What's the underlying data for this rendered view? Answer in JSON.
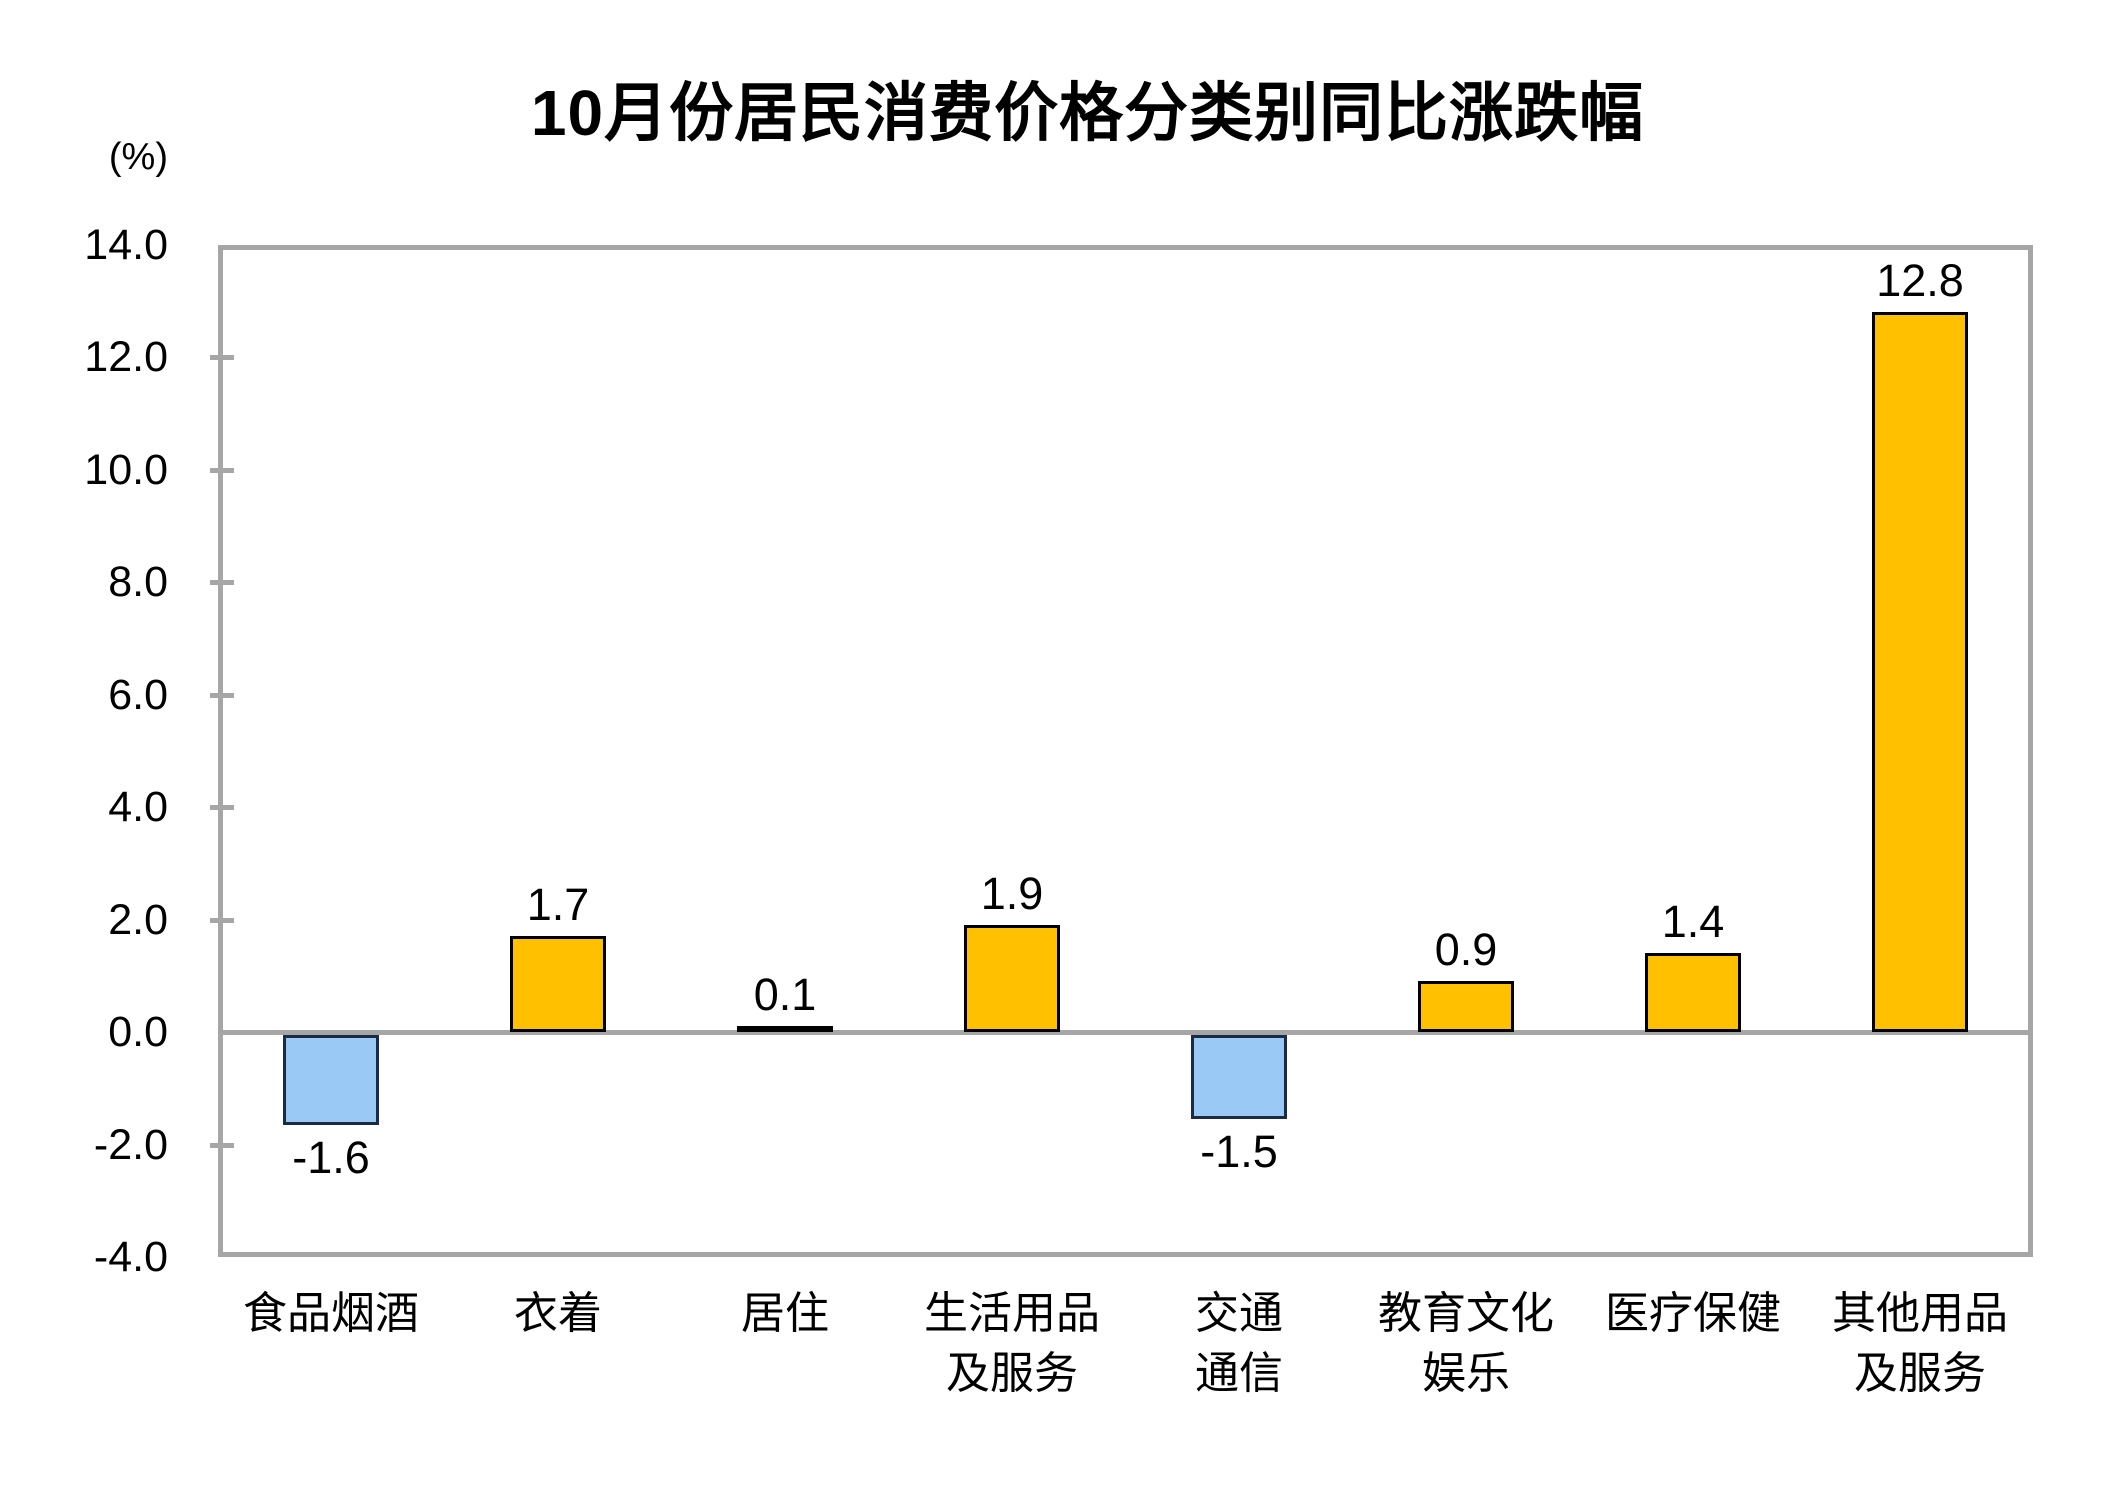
{
  "title": "10月份居民消费价格分类别同比涨跌幅",
  "y_axis_unit": "(%)",
  "chart_data": {
    "type": "bar",
    "title": "10月份居民消费价格分类别同比涨跌幅",
    "xlabel": "",
    "ylabel": "(%)",
    "ylim": [
      -4.0,
      14.0
    ],
    "ytick_step": 2.0,
    "yticks": [
      "14.0",
      "12.0",
      "10.0",
      "8.0",
      "6.0",
      "4.0",
      "2.0",
      "0.0",
      "-2.0",
      "-4.0"
    ],
    "grid": false,
    "legend_position": "none",
    "categories": [
      "食品烟酒",
      "衣着",
      "居住",
      "生活用品及服务",
      "交通通信",
      "教育文化娱乐",
      "医疗保健",
      "其他用品及服务"
    ],
    "category_display": [
      "食品烟酒",
      "衣着",
      "居住",
      "生活用品\n及服务",
      "交通\n通信",
      "教育文化\n娱乐",
      "医疗保健",
      "其他用品\n及服务"
    ],
    "values": [
      -1.6,
      1.7,
      0.1,
      1.9,
      -1.5,
      0.9,
      1.4,
      12.8
    ],
    "value_labels": [
      "-1.6",
      "1.7",
      "0.1",
      "1.9",
      "-1.5",
      "0.9",
      "1.4",
      "12.8"
    ],
    "colors": {
      "positive_fill": "#ffc000",
      "positive_border": "#000000",
      "negative_fill": "#9ac9f5",
      "negative_border": "#1b2a45",
      "axis": "#a6a6a6",
      "text": "#000000",
      "background": "#ffffff"
    }
  }
}
